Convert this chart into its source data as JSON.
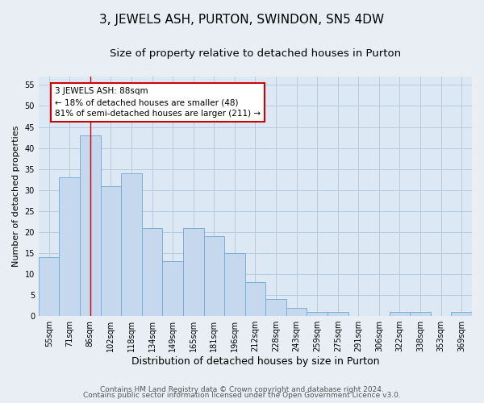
{
  "title": "3, JEWELS ASH, PURTON, SWINDON, SN5 4DW",
  "subtitle": "Size of property relative to detached houses in Purton",
  "xlabel": "Distribution of detached houses by size in Purton",
  "ylabel": "Number of detached properties",
  "categories": [
    "55sqm",
    "71sqm",
    "86sqm",
    "102sqm",
    "118sqm",
    "134sqm",
    "149sqm",
    "165sqm",
    "181sqm",
    "196sqm",
    "212sqm",
    "228sqm",
    "243sqm",
    "259sqm",
    "275sqm",
    "291sqm",
    "306sqm",
    "322sqm",
    "338sqm",
    "353sqm",
    "369sqm"
  ],
  "values": [
    14,
    33,
    43,
    31,
    34,
    21,
    13,
    21,
    19,
    15,
    8,
    4,
    2,
    1,
    1,
    0,
    0,
    1,
    1,
    0,
    1
  ],
  "bar_color": "#c5d8ed",
  "bar_edge_color": "#7aafd4",
  "bar_linewidth": 0.7,
  "vline_index": 2,
  "vline_color": "#cc0000",
  "annotation_text": "3 JEWELS ASH: 88sqm\n← 18% of detached houses are smaller (48)\n81% of semi-detached houses are larger (211) →",
  "annotation_box_color": "#ffffff",
  "annotation_border_color": "#cc0000",
  "ylim": [
    0,
    57
  ],
  "yticks": [
    0,
    5,
    10,
    15,
    20,
    25,
    30,
    35,
    40,
    45,
    50,
    55
  ],
  "grid_color": "#b8ccdd",
  "plot_bg_color": "#dce9f5",
  "fig_bg_color": "#e8eef4",
  "footer_line1": "Contains HM Land Registry data © Crown copyright and database right 2024.",
  "footer_line2": "Contains public sector information licensed under the Open Government Licence v3.0.",
  "title_fontsize": 11,
  "subtitle_fontsize": 9.5,
  "xlabel_fontsize": 9,
  "ylabel_fontsize": 8,
  "tick_fontsize": 7,
  "footer_fontsize": 6.5,
  "annot_fontsize": 7.5
}
